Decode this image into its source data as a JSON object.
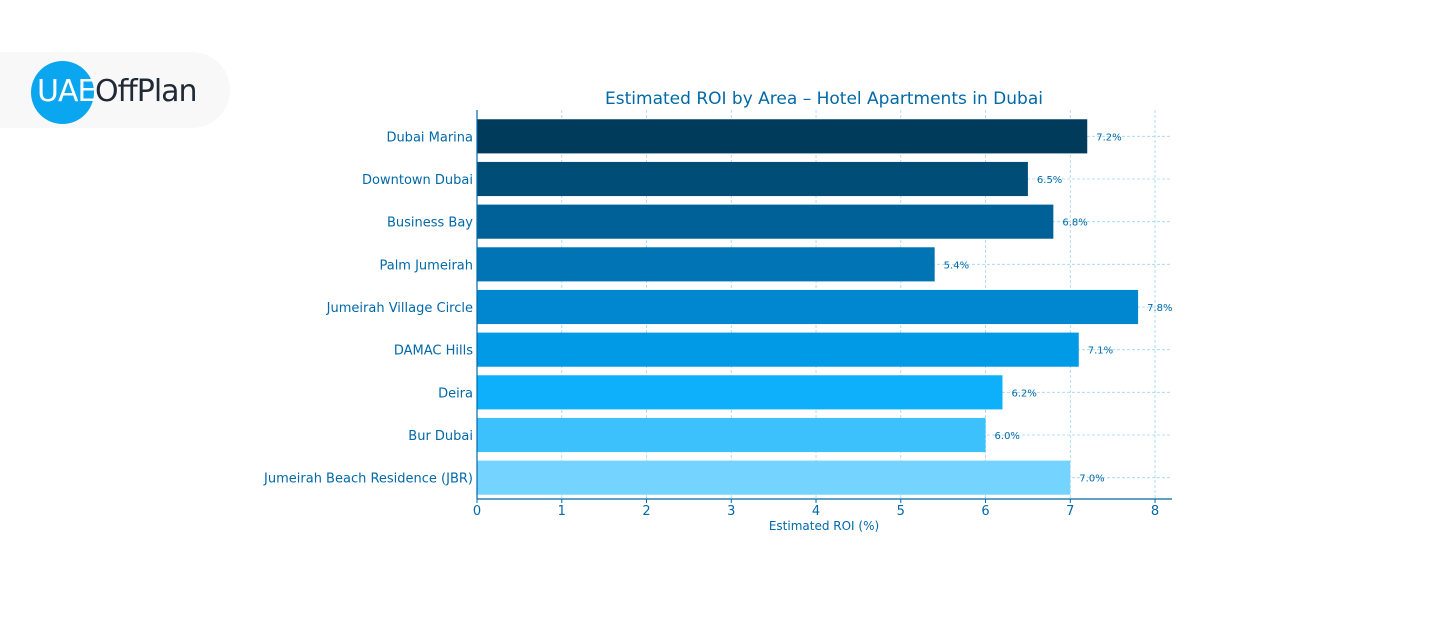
{
  "logo": {
    "left_text": "UAE",
    "right_text": "OffPlan"
  },
  "chart_data": {
    "type": "bar",
    "orientation": "horizontal",
    "title": "Estimated ROI by Area – Hotel Apartments in Dubai",
    "xlabel": "Estimated ROI (%)",
    "ylabel": "",
    "xlim": [
      0,
      8.2
    ],
    "xticks": [
      0,
      1,
      2,
      3,
      4,
      5,
      6,
      7,
      8
    ],
    "grid": true,
    "categories": [
      "Dubai Marina",
      "Downtown Dubai",
      "Business Bay",
      "Palm Jumeirah",
      "Jumeirah Village Circle",
      "DAMAC Hills",
      "Deira",
      "Bur Dubai",
      "Jumeirah Beach Residence (JBR)"
    ],
    "values": [
      7.2,
      6.5,
      6.8,
      5.4,
      7.8,
      7.1,
      6.2,
      6.0,
      7.0
    ],
    "data_labels": [
      "7.2%",
      "6.5%",
      "6.8%",
      "5.4%",
      "7.8%",
      "7.1%",
      "6.2%",
      "6.0%",
      "7.0%"
    ],
    "colors": [
      "#003b5c",
      "#004e78",
      "#006199",
      "#0074b5",
      "#0087cf",
      "#009ae6",
      "#0fb0fb",
      "#3dc1fd",
      "#74d3ff"
    ],
    "text_color": "#0069a8",
    "grid_color": "#9ed6f5"
  }
}
